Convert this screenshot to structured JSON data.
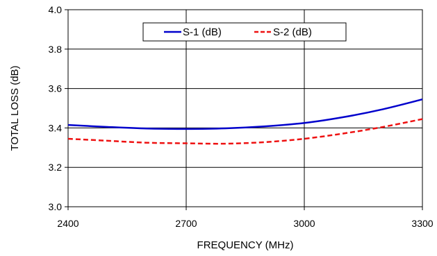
{
  "chart_data": {
    "type": "line",
    "title": "",
    "xlabel": "FREQUENCY (MHz)",
    "ylabel": "TOTAL  LOSS (dB)",
    "xlim": [
      2400,
      3300
    ],
    "ylim": [
      3.0,
      4.0
    ],
    "x_ticks": [
      "2400",
      "2700",
      "3000",
      "3300"
    ],
    "y_ticks": [
      "3.0",
      "3.2",
      "3.4",
      "3.6",
      "3.8",
      "4.0"
    ],
    "grid": true,
    "legend_position": "top-center",
    "x": [
      2400,
      2500,
      2600,
      2700,
      2800,
      2900,
      3000,
      3100,
      3200,
      3300
    ],
    "series": [
      {
        "name": "S-1 (dB)",
        "color": "#0000cc",
        "dash": "solid",
        "values": [
          3.415,
          3.405,
          3.397,
          3.395,
          3.398,
          3.408,
          3.425,
          3.455,
          3.495,
          3.545
        ]
      },
      {
        "name": "S-2 (dB)",
        "color": "#ee1111",
        "dash": "dashed",
        "values": [
          3.345,
          3.335,
          3.325,
          3.322,
          3.32,
          3.328,
          3.345,
          3.372,
          3.405,
          3.445
        ]
      }
    ]
  }
}
